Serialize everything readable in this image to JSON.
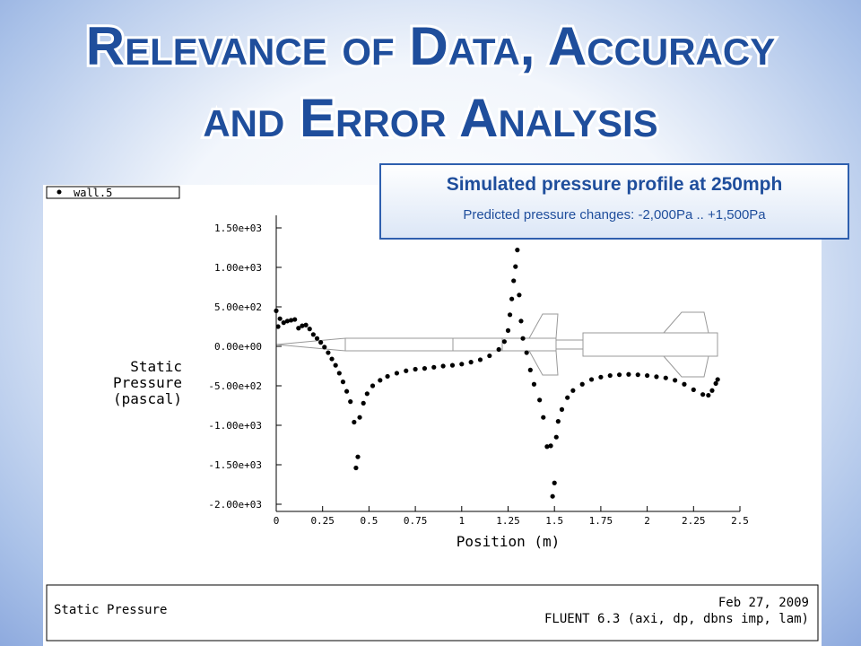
{
  "slide": {
    "title_lines": [
      "Relevance of Data, Accuracy",
      "and Error Analysis"
    ],
    "callout": {
      "heading": "Simulated pressure profile at 250mph",
      "text": "Predicted pressure changes: -2,000Pa .. +1,500Pa"
    }
  },
  "footer": {
    "left": "Static Pressure",
    "date": "Feb 27, 2009",
    "version": "FLUENT 6.3 (axi, dp, dbns imp, lam)"
  },
  "chart_data": {
    "type": "scatter",
    "ylabel_lines": [
      "Static",
      "Pressure",
      "(pascal)"
    ],
    "xlabel": "Position (m)",
    "xlim": [
      0,
      2.5
    ],
    "xticks": [
      0,
      0.25,
      0.5,
      0.75,
      1,
      1.25,
      1.5,
      1.75,
      2,
      2.25,
      2.5
    ],
    "ylim": [
      -2000,
      1500
    ],
    "yticks": [
      {
        "value": 1500,
        "label": "1.50e+03"
      },
      {
        "value": 1000,
        "label": "1.00e+03"
      },
      {
        "value": 500,
        "label": "5.00e+02"
      },
      {
        "value": 0,
        "label": "0.00e+00"
      },
      {
        "value": -500,
        "label": "-5.00e+02"
      },
      {
        "value": -1000,
        "label": "-1.00e+03"
      },
      {
        "value": -1500,
        "label": "-1.50e+03"
      },
      {
        "value": -2000,
        "label": "-2.00e+03"
      }
    ],
    "series": [
      {
        "name": "wall.5",
        "color": "#000000",
        "x": [
          0,
          0.01,
          0.02,
          0.04,
          0.06,
          0.08,
          0.1,
          0.12,
          0.14,
          0.16,
          0.18,
          0.2,
          0.22,
          0.24,
          0.26,
          0.28,
          0.3,
          0.32,
          0.34,
          0.36,
          0.38,
          0.4,
          0.42,
          0.43,
          0.44,
          0.45,
          0.47,
          0.49,
          0.52,
          0.56,
          0.6,
          0.65,
          0.7,
          0.75,
          0.8,
          0.85,
          0.9,
          0.95,
          1,
          1.05,
          1.1,
          1.15,
          1.2,
          1.23,
          1.25,
          1.26,
          1.27,
          1.28,
          1.29,
          1.3,
          1.31,
          1.32,
          1.33,
          1.35,
          1.37,
          1.39,
          1.42,
          1.44,
          1.46,
          1.48,
          1.49,
          1.5,
          1.51,
          1.52,
          1.54,
          1.57,
          1.6,
          1.65,
          1.7,
          1.75,
          1.8,
          1.85,
          1.9,
          1.95,
          2,
          2.05,
          2.1,
          2.15,
          2.2,
          2.25,
          2.3,
          2.33,
          2.35,
          2.37,
          2.38
        ],
        "values": [
          450,
          250,
          350,
          300,
          320,
          330,
          340,
          230,
          260,
          270,
          220,
          150,
          100,
          50,
          -10,
          -80,
          -160,
          -240,
          -340,
          -450,
          -570,
          -700,
          -960,
          -1540,
          -1400,
          -900,
          -720,
          -600,
          -500,
          -430,
          -380,
          -340,
          -310,
          -290,
          -280,
          -265,
          -250,
          -240,
          -225,
          -200,
          -170,
          -120,
          -40,
          60,
          200,
          400,
          600,
          830,
          1010,
          1220,
          650,
          320,
          100,
          -80,
          -300,
          -480,
          -680,
          -900,
          -1270,
          -1260,
          -1900,
          -1730,
          -1150,
          -950,
          -800,
          -650,
          -560,
          -480,
          -420,
          -390,
          -370,
          -360,
          -355,
          -360,
          -370,
          -385,
          -400,
          -430,
          -480,
          -550,
          -610,
          -620,
          -560,
          -470,
          -420
        ]
      }
    ]
  }
}
